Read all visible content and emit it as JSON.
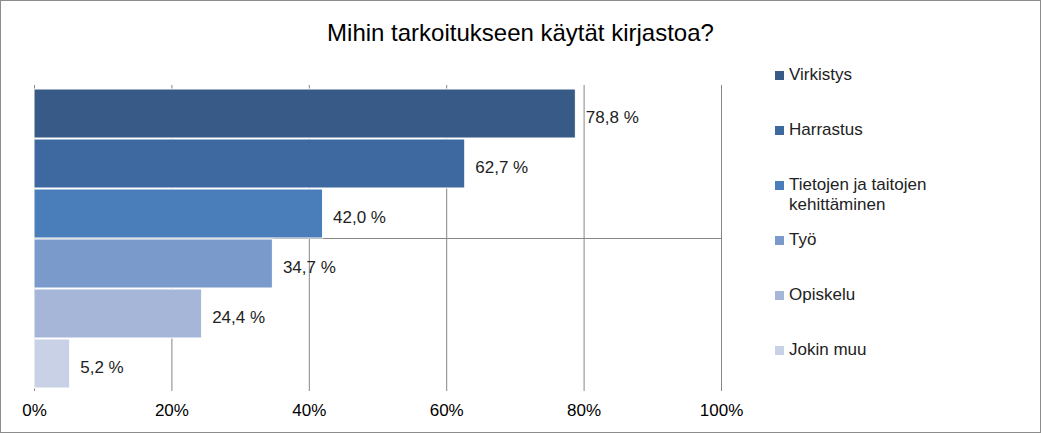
{
  "chart_data": {
    "type": "bar",
    "title": "Mihin tarkoitukseen käytät kirjastoa?",
    "orientation": "horizontal",
    "categories": [
      "Virkistys",
      "Harrastus",
      "Tietojen ja taitojen kehittäminen",
      "Työ",
      "Opiskelu",
      "Jokin muu"
    ],
    "values": [
      78.8,
      62.7,
      42.0,
      34.7,
      24.4,
      5.2
    ],
    "value_labels": [
      "78,8 %",
      "62,7 %",
      "42,0 %",
      "34,7 %",
      "24,4 %",
      "5,2 %"
    ],
    "colors": [
      "#375a87",
      "#3e68a0",
      "#4a7ebb",
      "#7a9acc",
      "#a5b6d8",
      "#c8d1e6"
    ],
    "xlim": [
      0,
      100
    ],
    "xticks": [
      {
        "value": 0,
        "label": "0%"
      },
      {
        "value": 20,
        "label": "20%"
      },
      {
        "value": 40,
        "label": "40%"
      },
      {
        "value": 60,
        "label": "60%"
      },
      {
        "value": 80,
        "label": "80%"
      },
      {
        "value": 100,
        "label": "100%"
      }
    ],
    "grid": true,
    "data_labels": true,
    "tick_labels": "x",
    "legend": "right"
  }
}
